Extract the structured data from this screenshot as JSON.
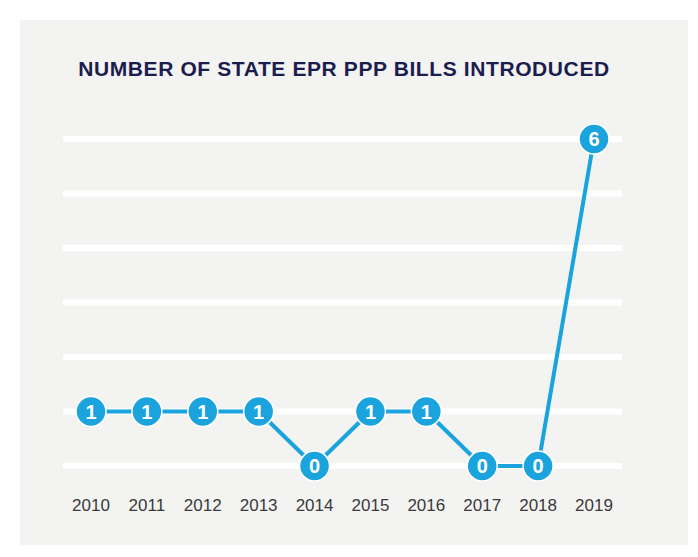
{
  "chart_data": {
    "type": "line",
    "title": "NUMBER OF STATE EPR PPP BILLS INTRODUCED",
    "categories": [
      "2010",
      "2011",
      "2012",
      "2013",
      "2014",
      "2015",
      "2016",
      "2017",
      "2018",
      "2019"
    ],
    "values": [
      1,
      1,
      1,
      1,
      0,
      1,
      1,
      0,
      0,
      6
    ],
    "color": "#1ba3dd",
    "marker": "circle",
    "ylim": [
      0,
      6
    ],
    "yticks": [
      0,
      1,
      2,
      3,
      4,
      5,
      6
    ],
    "grid": true,
    "data_labels": true,
    "tick_labels": "x"
  }
}
